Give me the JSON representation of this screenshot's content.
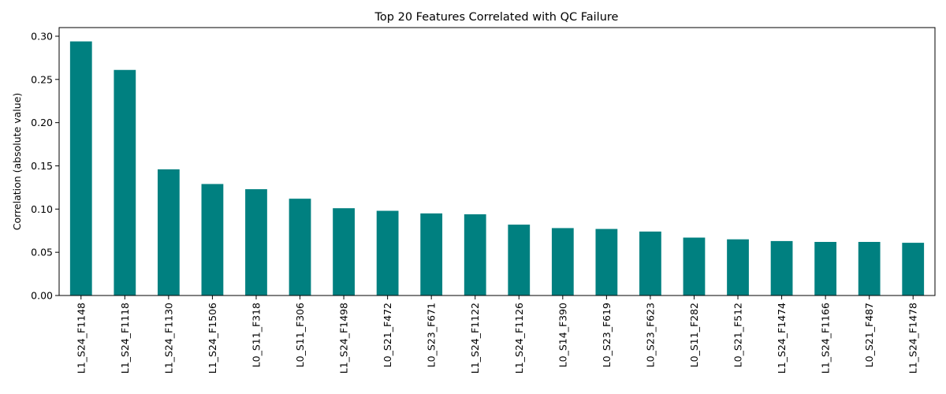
{
  "chart_data": {
    "type": "bar",
    "title": "Top 20 Features Correlated with QC Failure",
    "xlabel": "",
    "ylabel": "Correlation (absolute value)",
    "ylim": [
      0,
      0.31
    ],
    "yticks": [
      "0.00",
      "0.05",
      "0.10",
      "0.15",
      "0.20",
      "0.25",
      "0.30"
    ],
    "ytick_values": [
      0,
      0.05,
      0.1,
      0.15,
      0.2,
      0.25,
      0.3
    ],
    "grid": false,
    "bar_color": "#008080",
    "categories": [
      "L1_S24_F1148",
      "L1_S24_F1118",
      "L1_S24_F1130",
      "L1_S24_F1506",
      "L0_S11_F318",
      "L0_S11_F306",
      "L1_S24_F1498",
      "L0_S21_F472",
      "L0_S23_F671",
      "L1_S24_F1122",
      "L1_S24_F1126",
      "L0_S14_F390",
      "L0_S23_F619",
      "L0_S23_F623",
      "L0_S11_F282",
      "L0_S21_F512",
      "L1_S24_F1474",
      "L1_S24_F1166",
      "L0_S21_F487",
      "L1_S24_F1478"
    ],
    "values": [
      0.294,
      0.261,
      0.146,
      0.129,
      0.123,
      0.112,
      0.101,
      0.098,
      0.095,
      0.094,
      0.082,
      0.078,
      0.077,
      0.074,
      0.067,
      0.065,
      0.063,
      0.062,
      0.062,
      0.061
    ]
  }
}
